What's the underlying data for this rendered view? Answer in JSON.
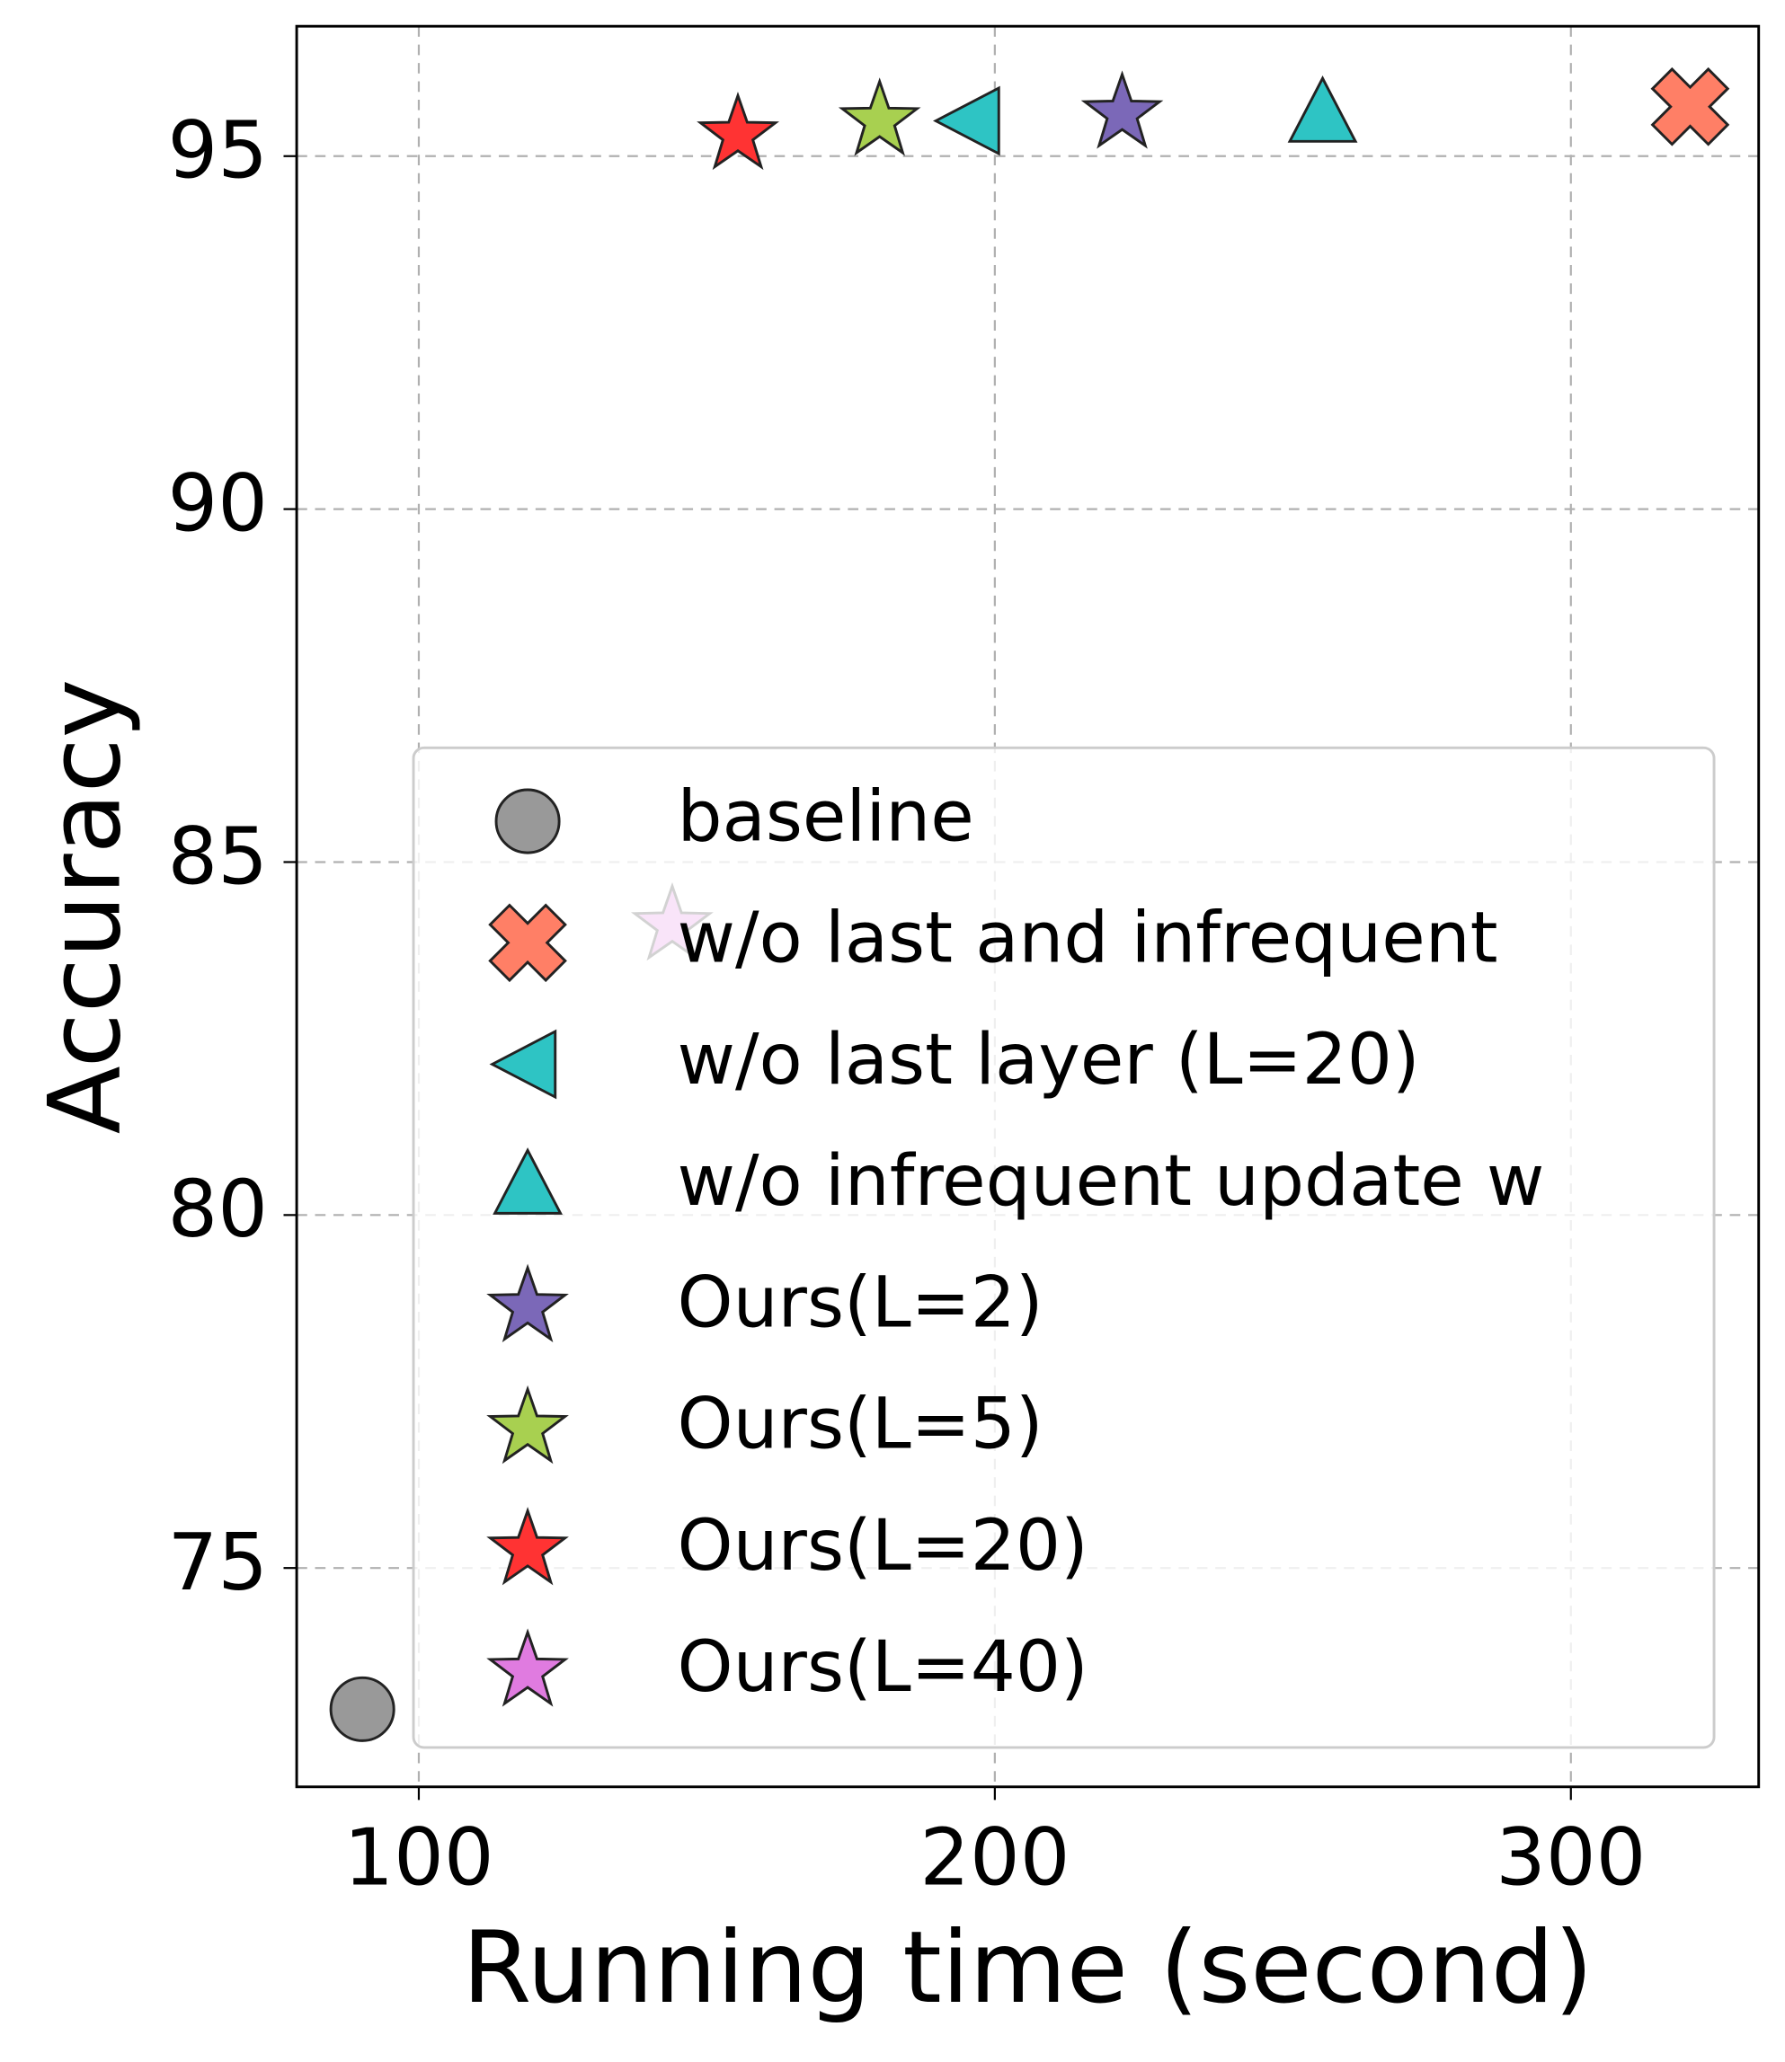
{
  "chart_data": {
    "type": "scatter",
    "x_label": "Running time (second)",
    "y_label": "Accuracy",
    "xlim": [
      78.8,
      332.6
    ],
    "xticks": [
      100,
      200,
      300
    ],
    "ylim": [
      71.9,
      96.84
    ],
    "yticks": [
      75,
      80,
      85,
      90,
      95
    ],
    "grid": true,
    "legend": "lower right",
    "series": [
      {
        "name": "baseline",
        "color": "#999999",
        "marker": "circle",
        "x": [
          90.2
        ],
        "values": [
          73.0
        ]
      },
      {
        "name": "w/o last and infrequent",
        "color": "#ff7f66",
        "marker": "x",
        "x": [
          320.7
        ],
        "values": [
          95.7
        ]
      },
      {
        "name": "w/o last layer (L=20)",
        "color": "#2ec4c4",
        "marker": "triangle-left",
        "x": [
          195.9
        ],
        "values": [
          95.5
        ]
      },
      {
        "name": "w/o infrequent update w",
        "color": "#2ec4c4",
        "marker": "triangle-up",
        "x": [
          256.9
        ],
        "values": [
          95.6
        ]
      },
      {
        "name": "Ours(L=2)",
        "color": "#7b68b8",
        "marker": "star",
        "x": [
          222.1
        ],
        "values": [
          95.6
        ]
      },
      {
        "name": "Ours(L=5)",
        "color": "#a8d050",
        "marker": "star",
        "x": [
          180.0
        ],
        "values": [
          95.5
        ]
      },
      {
        "name": "Ours(L=20)",
        "color": "#ff3333",
        "marker": "star",
        "x": [
          155.4
        ],
        "values": [
          95.3
        ]
      },
      {
        "name": "Ours(L=40)",
        "color": "#e07be0",
        "marker": "star",
        "x": [
          144.0
        ],
        "values": [
          84.1
        ]
      }
    ]
  }
}
